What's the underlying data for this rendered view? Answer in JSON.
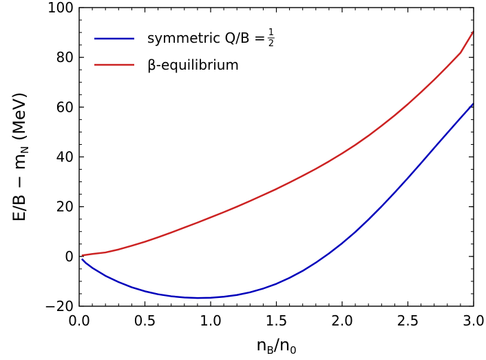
{
  "chart_data": {
    "type": "line",
    "xlabel": {
      "base": "n",
      "sub": "B",
      "sep": "/",
      "base2": "n",
      "sub2": "0"
    },
    "ylabel": {
      "pre": "E/B − m",
      "sub": "N",
      "post": " (MeV)"
    },
    "xlim": [
      0.0,
      3.0
    ],
    "ylim": [
      -20,
      100
    ],
    "xticks": [
      0.0,
      0.5,
      1.0,
      1.5,
      2.0,
      2.5,
      3.0
    ],
    "xtick_labels": [
      "0.0",
      "0.5",
      "1.0",
      "1.5",
      "2.0",
      "2.5",
      "3.0"
    ],
    "yticks": [
      -20,
      0,
      20,
      40,
      60,
      80,
      100
    ],
    "ytick_labels": [
      "−20",
      "0",
      "20",
      "40",
      "60",
      "80",
      "100"
    ],
    "grid": false,
    "legend_position": "top-left",
    "series": [
      {
        "name": "symmetric Q/B = ",
        "name_fraction": {
          "num": "1",
          "den": "2"
        },
        "color": "#0000bb",
        "x": [
          0.02,
          0.05,
          0.1,
          0.2,
          0.3,
          0.4,
          0.5,
          0.6,
          0.7,
          0.8,
          0.9,
          1.0,
          1.1,
          1.2,
          1.3,
          1.4,
          1.5,
          1.6,
          1.7,
          1.8,
          1.9,
          2.0,
          2.1,
          2.2,
          2.3,
          2.4,
          2.5,
          2.6,
          2.7,
          2.8,
          2.9,
          3.0
        ],
        "y": [
          -1.0,
          -2.6,
          -4.6,
          -7.8,
          -10.3,
          -12.4,
          -14.0,
          -15.2,
          -16.0,
          -16.5,
          -16.7,
          -16.6,
          -16.2,
          -15.5,
          -14.4,
          -12.9,
          -11.0,
          -8.6,
          -5.8,
          -2.5,
          1.2,
          5.3,
          9.8,
          14.8,
          20.1,
          25.7,
          31.5,
          37.5,
          43.6,
          49.6,
          55.6,
          61.5
        ]
      },
      {
        "name": "β-equilibrium",
        "color": "#cc2222",
        "x": [
          0.02,
          0.1,
          0.2,
          0.3,
          0.4,
          0.5,
          0.6,
          0.7,
          0.8,
          0.9,
          1.0,
          1.1,
          1.2,
          1.3,
          1.4,
          1.5,
          1.6,
          1.7,
          1.8,
          1.9,
          2.0,
          2.1,
          2.2,
          2.3,
          2.4,
          2.5,
          2.6,
          2.7,
          2.8,
          2.9,
          3.0
        ],
        "y": [
          0.4,
          1.0,
          1.6,
          2.8,
          4.3,
          5.9,
          7.7,
          9.6,
          11.6,
          13.6,
          15.7,
          17.8,
          20.0,
          22.3,
          24.7,
          27.1,
          29.7,
          32.4,
          35.2,
          38.2,
          41.4,
          44.8,
          48.5,
          52.5,
          56.7,
          61.2,
          66.0,
          71.0,
          76.3,
          81.8,
          90.5
        ]
      }
    ]
  }
}
